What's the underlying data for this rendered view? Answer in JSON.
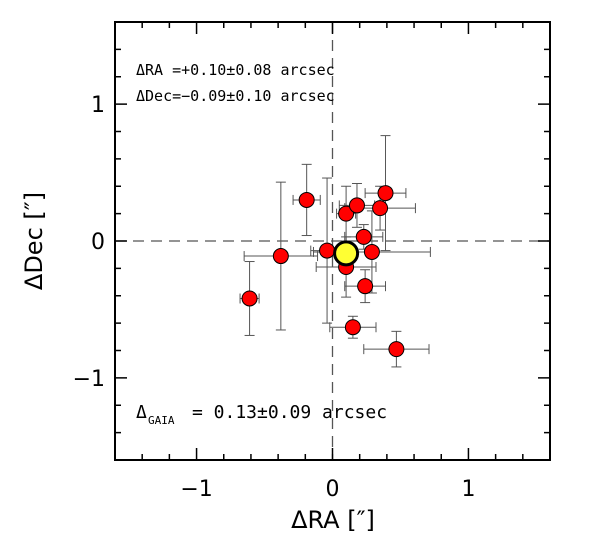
{
  "chart_data": {
    "type": "scatter",
    "xlabel": "ΔRA [″]",
    "ylabel": "ΔDec [″]",
    "xlim": [
      -1.6,
      1.6
    ],
    "ylim": [
      -1.6,
      1.6
    ],
    "x_ticks": [
      {
        "value": -1,
        "label": "−1"
      },
      {
        "value": 0,
        "label": "0"
      },
      {
        "value": 1,
        "label": "1"
      }
    ],
    "y_ticks": [
      {
        "value": -1,
        "label": "−1"
      },
      {
        "value": 0,
        "label": "0"
      },
      {
        "value": 1,
        "label": "1"
      }
    ],
    "annotations": {
      "ra_offset": "ΔRA =+0.10±0.08 arcsec",
      "dec_offset": "ΔDec=−0.09±0.10 arcsec",
      "gaia_symbol": "Δ",
      "gaia_subscript": "GAIA",
      "gaia_value": "= 0.13±0.09 arcsec"
    },
    "reference_lines": {
      "x": 0,
      "y": 0,
      "style": "dashed"
    },
    "points": [
      {
        "x": -0.61,
        "y": -0.42,
        "xerr": 0.07,
        "yerr": 0.27
      },
      {
        "x": -0.38,
        "y": -0.11,
        "xerr": 0.27,
        "yerr": 0.54
      },
      {
        "x": -0.19,
        "y": 0.3,
        "xerr": 0.1,
        "yerr": 0.26
      },
      {
        "x": -0.04,
        "y": -0.07,
        "xerr": 0.12,
        "yerr": 0.53
      },
      {
        "x": 0.1,
        "y": 0.2,
        "xerr": 0.07,
        "yerr": 0.2
      },
      {
        "x": 0.1,
        "y": -0.19,
        "xerr": 0.22,
        "yerr": 0.22
      },
      {
        "x": 0.18,
        "y": 0.26,
        "xerr": 0.13,
        "yerr": 0.16
      },
      {
        "x": 0.23,
        "y": 0.03,
        "xerr": 0.14,
        "yerr": 0.09
      },
      {
        "x": 0.29,
        "y": -0.08,
        "xerr": 0.43,
        "yerr": 0.3
      },
      {
        "x": 0.35,
        "y": 0.24,
        "xerr": 0.26,
        "yerr": 0.16
      },
      {
        "x": 0.39,
        "y": 0.35,
        "xerr": 0.15,
        "yerr": 0.42
      },
      {
        "x": 0.24,
        "y": -0.33,
        "xerr": 0.15,
        "yerr": 0.12
      },
      {
        "x": 0.15,
        "y": -0.63,
        "xerr": 0.17,
        "yerr": 0.08
      },
      {
        "x": 0.47,
        "y": -0.79,
        "xerr": 0.24,
        "yerr": 0.13
      }
    ],
    "mean_point": {
      "x": 0.1,
      "y": -0.09
    },
    "colors": {
      "points": "#ff0000",
      "mean": "#ffff33",
      "error_bars": "#555555",
      "reference_lines": "#555555",
      "frame": "#000000"
    }
  }
}
